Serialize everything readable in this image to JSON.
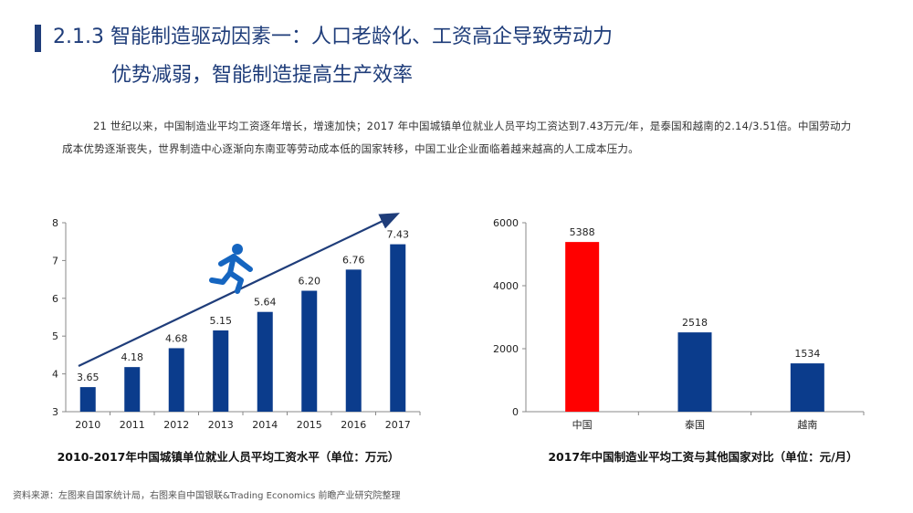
{
  "header": {
    "title_line1": "2.1.3 智能制造驱动因素一：人口老龄化、工资高企导致劳动力",
    "title_line2": "优势减弱，智能制造提高生产效率"
  },
  "intro": {
    "text": "21 世纪以来，中国制造业平均工资逐年增长，增速加快；2017 年中国城镇单位就业人员平均工资达到7.43万元/年，是泰国和越南的2.14/3.51倍。中国劳动力成本优势逐渐丧失，世界制造中心逐渐向东南亚等劳动成本低的国家转移，中国工业企业面临着越来越高的人工成本压力。"
  },
  "colors": {
    "title": "#1f3d7a",
    "bar": "#0b3c8c",
    "china": "#ff0000",
    "arrow": "#1f3d7a",
    "runner": "#1565c0"
  },
  "icons": {
    "runner": "running-person-icon"
  },
  "chart_data": [
    {
      "type": "bar",
      "title": "2010-2017年中国城镇单位就业人员平均工资水平（单位：万元）",
      "categories": [
        "2010",
        "2011",
        "2012",
        "2013",
        "2014",
        "2015",
        "2016",
        "2017"
      ],
      "values": [
        3.65,
        4.18,
        4.68,
        5.15,
        5.64,
        6.2,
        6.76,
        7.43
      ],
      "labels": [
        "3.65",
        "4.18",
        "4.68",
        "5.15",
        "5.64",
        "6.20",
        "6.76",
        "7.43"
      ],
      "ylim": [
        3,
        8
      ],
      "yticks": [
        "3",
        "4",
        "5",
        "6",
        "7",
        "8"
      ],
      "ytick_values": [
        3,
        4,
        5,
        6,
        7,
        8
      ],
      "grid": false,
      "trend_arrow": true
    },
    {
      "type": "bar",
      "title": "2017年中国制造业平均工资与其他国家对比（单位：元/月）",
      "categories": [
        "中国",
        "泰国",
        "越南"
      ],
      "values": [
        5388,
        2518,
        1534
      ],
      "labels": [
        "5388",
        "2518",
        "1534"
      ],
      "ylim": [
        0,
        6000
      ],
      "yticks": [
        "0",
        "2000",
        "4000",
        "6000"
      ],
      "ytick_values": [
        0,
        2000,
        4000,
        6000
      ],
      "grid": false
    }
  ],
  "footer": {
    "source": "资料来源：左图来自国家统计局，右图来自中国银联&Trading Economics 前瞻产业研究院整理"
  }
}
